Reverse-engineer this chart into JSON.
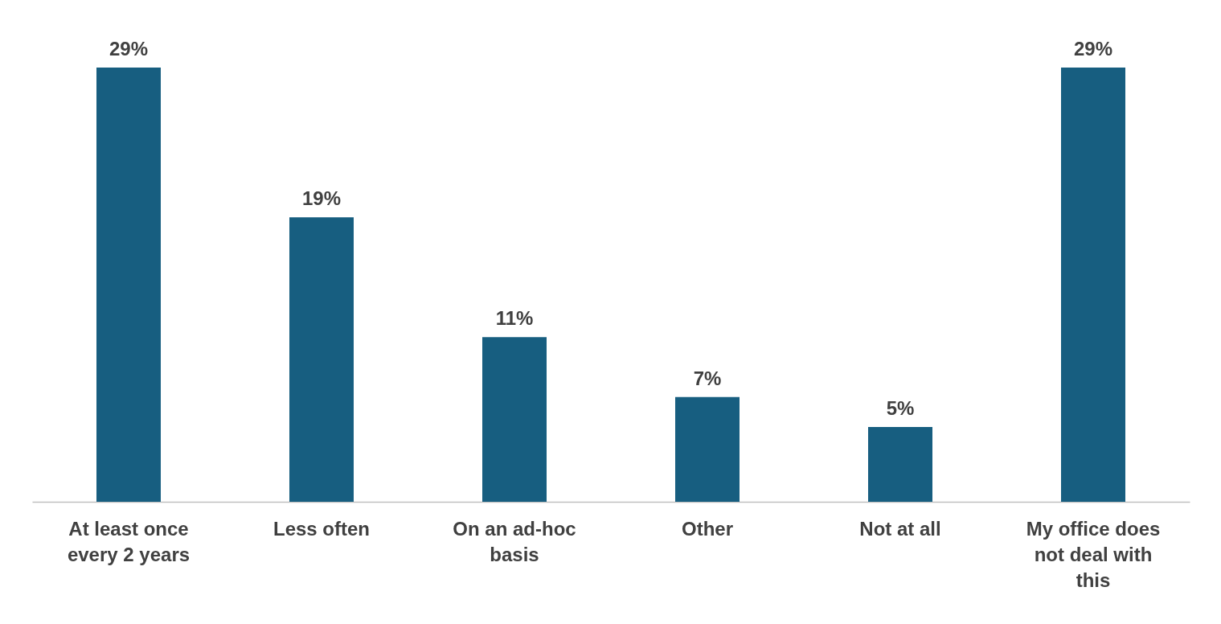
{
  "chart_data": {
    "type": "bar",
    "categories": [
      "At least once every 2 years",
      "Less often",
      "On an ad-hoc basis",
      "Other",
      "Not at all",
      "My office does not deal with this"
    ],
    "values": [
      29,
      19,
      11,
      7,
      5,
      29
    ],
    "value_labels": [
      "29%",
      "19%",
      "11%",
      "7%",
      "5%",
      "29%"
    ],
    "color": "#175e80",
    "grid": false
  }
}
